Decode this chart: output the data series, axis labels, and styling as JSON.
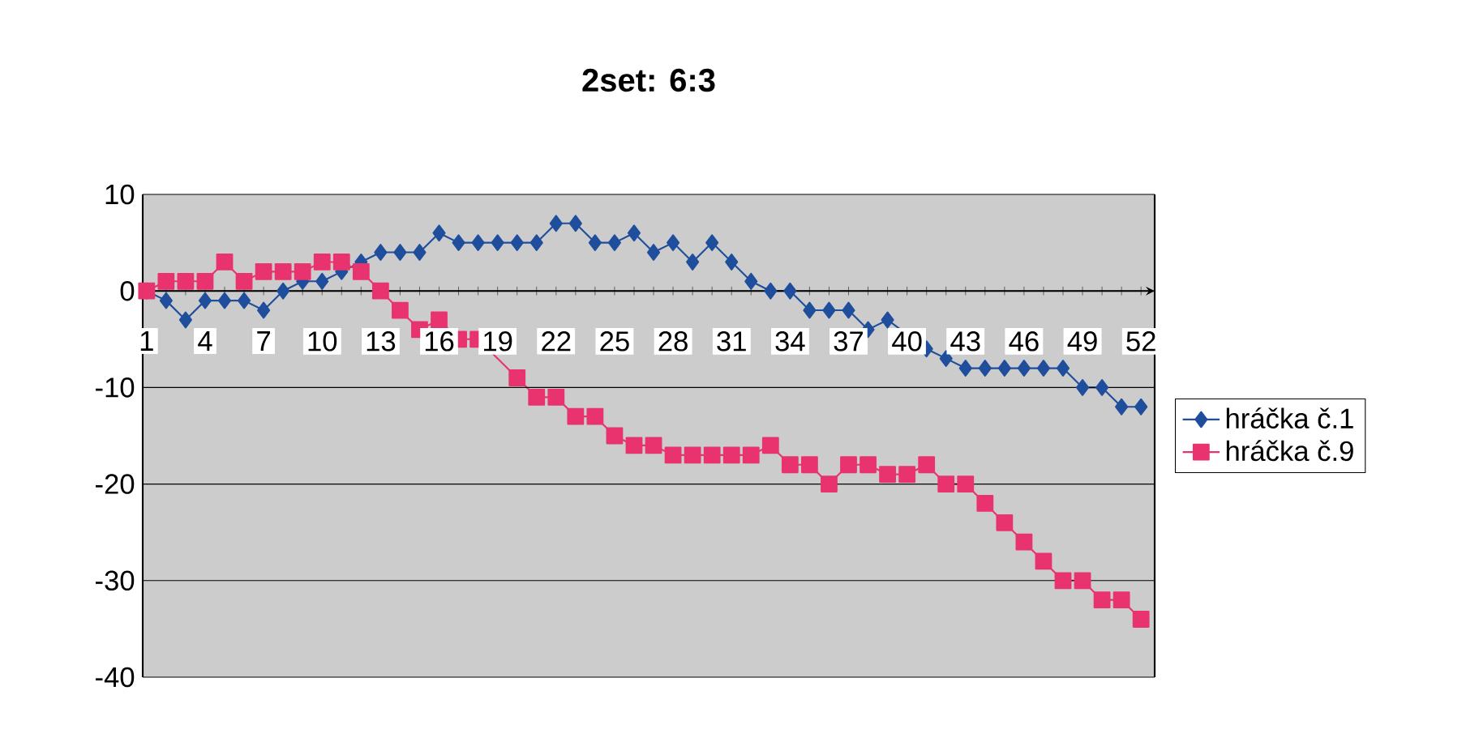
{
  "chart_data": {
    "type": "line",
    "title": "2set: 6:3",
    "categories": [
      "1",
      null,
      null,
      "4",
      null,
      null,
      "7",
      null,
      null,
      "10",
      null,
      null,
      "13",
      null,
      null,
      "16",
      null,
      null,
      "19",
      null,
      null,
      "22",
      null,
      null,
      "25",
      null,
      null,
      "28",
      null,
      null,
      "31",
      null,
      null,
      "34",
      null,
      null,
      "37",
      null,
      null,
      "40",
      null,
      null,
      "43",
      null,
      null,
      "46",
      null,
      null,
      "49",
      null,
      null,
      "52"
    ],
    "series": [
      {
        "name": "hráčka č.1",
        "color": "#1f4e9c",
        "marker": "diamond",
        "values": [
          0,
          -1,
          -3,
          -1,
          -1,
          -1,
          -2,
          0,
          1,
          1,
          2,
          3,
          4,
          4,
          4,
          6,
          5,
          5,
          5,
          5,
          5,
          7,
          7,
          5,
          5,
          6,
          4,
          5,
          3,
          5,
          3,
          1,
          0,
          0,
          -2,
          -2,
          -2,
          -4,
          -3,
          null,
          -6,
          -7,
          -8,
          -8,
          -8,
          -8,
          -8,
          -8,
          -10,
          -10,
          -12,
          -12
        ]
      },
      {
        "name": "hráčka č.9",
        "color": "#e8336e",
        "marker": "square",
        "values": [
          0,
          1,
          1,
          1,
          3,
          1,
          2,
          2,
          2,
          3,
          3,
          2,
          0,
          -2,
          -4,
          -3,
          -5,
          -5,
          null,
          -9,
          -11,
          -11,
          -13,
          -13,
          -15,
          -16,
          -16,
          -17,
          -17,
          -17,
          -17,
          -17,
          -16,
          -18,
          -18,
          -20,
          -18,
          -18,
          -19,
          -19,
          -18,
          -20,
          -20,
          -22,
          -24,
          -26,
          -28,
          -30,
          -30,
          -32,
          -32,
          -34
        ]
      }
    ],
    "ylim": [
      -40,
      10
    ],
    "yticks": [
      -40,
      -30,
      -20,
      -10,
      0,
      10
    ],
    "grid": "y",
    "legend": "right",
    "line_style": "solid"
  }
}
